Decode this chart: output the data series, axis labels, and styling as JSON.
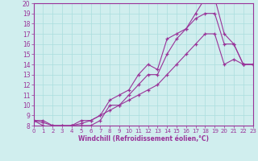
{
  "xlabel": "Windchill (Refroidissement éolien,°C)",
  "line_color": "#993399",
  "background_color": "#d0eeee",
  "grid_color": "#aadddd",
  "line1_x": [
    0,
    1,
    2,
    3,
    4,
    5,
    6,
    7,
    8,
    9,
    10,
    11,
    12,
    13,
    14,
    15,
    16,
    17,
    18,
    19,
    20,
    21,
    22,
    23
  ],
  "line1_y": [
    8.5,
    8.5,
    8.0,
    8.0,
    8.0,
    8.5,
    8.5,
    9.0,
    10.5,
    11.0,
    11.5,
    13.0,
    14.0,
    13.5,
    16.5,
    17.0,
    17.5,
    19.0,
    20.5,
    20.5,
    17.0,
    16.0,
    14.0,
    14.0
  ],
  "line2_x": [
    0,
    1,
    2,
    3,
    4,
    5,
    6,
    7,
    8,
    9,
    10,
    11,
    12,
    13,
    14,
    15,
    16,
    17,
    18,
    19,
    20,
    21,
    22,
    23
  ],
  "line2_y": [
    8.5,
    8.0,
    7.8,
    7.8,
    8.0,
    8.0,
    8.0,
    8.5,
    10.0,
    10.0,
    11.0,
    12.0,
    13.0,
    13.0,
    15.0,
    16.5,
    17.5,
    18.5,
    19.0,
    19.0,
    16.0,
    16.0,
    14.0,
    14.0
  ],
  "line3_x": [
    0,
    1,
    2,
    3,
    4,
    5,
    6,
    7,
    8,
    9,
    10,
    11,
    12,
    13,
    14,
    15,
    16,
    17,
    18,
    19,
    20,
    21,
    22,
    23
  ],
  "line3_y": [
    8.5,
    8.3,
    8.0,
    8.0,
    8.0,
    8.2,
    8.5,
    9.0,
    9.5,
    10.0,
    10.5,
    11.0,
    11.5,
    12.0,
    13.0,
    14.0,
    15.0,
    16.0,
    17.0,
    17.0,
    14.0,
    14.5,
    14.0,
    14.0
  ],
  "xlim": [
    0,
    23
  ],
  "ylim": [
    8,
    20
  ],
  "yticks": [
    8,
    9,
    10,
    11,
    12,
    13,
    14,
    15,
    16,
    17,
    18,
    19,
    20
  ],
  "xticks": [
    0,
    1,
    2,
    3,
    4,
    5,
    6,
    7,
    8,
    9,
    10,
    11,
    12,
    13,
    14,
    15,
    16,
    17,
    18,
    19,
    20,
    21,
    22,
    23
  ],
  "marker": "+",
  "markersize": 3.5,
  "linewidth": 0.8
}
